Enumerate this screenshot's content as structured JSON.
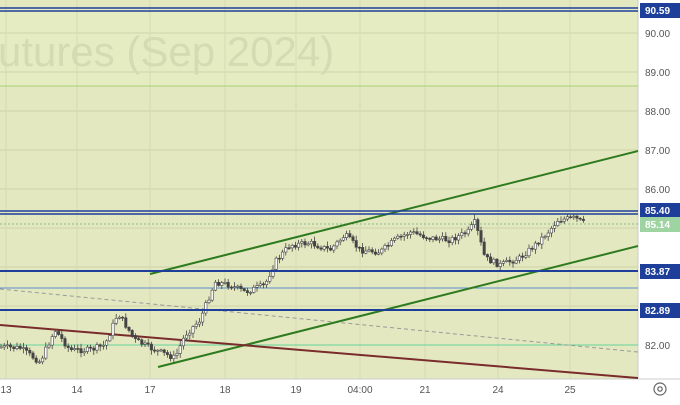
{
  "chart": {
    "watermark": "utures (Sep 2024)",
    "colors": {
      "plot_bg": "#e3e8c0",
      "upper_band_bg": "#e6ecc2",
      "grid": "#cdd3a8",
      "axis_text": "#555555",
      "axis_bg": "#ffffff",
      "level_line": "#1d3f9a",
      "trend_green": "#2e7a1f",
      "trend_brown": "#7a2b2b",
      "candle": "#444444",
      "last_price_bg": "#9ed3a2",
      "level_label_bg": "#1d3f9a",
      "level_label_text": "#ffffff"
    },
    "price_axis": {
      "ticks": [
        "90.00",
        "89.00",
        "88.00",
        "87.00",
        "86.00",
        "82.00"
      ],
      "labels": [
        {
          "price": 90.59,
          "text": "90.59",
          "style": "level"
        },
        {
          "price": 85.4,
          "text": "85.40",
          "style": "level"
        },
        {
          "price": 85.14,
          "text": "85.14",
          "style": "last"
        },
        {
          "price": 83.87,
          "text": "83.87",
          "style": "level"
        },
        {
          "price": 82.89,
          "text": "82.89",
          "style": "level"
        }
      ]
    },
    "time_axis": {
      "ticks": [
        "13",
        "14",
        "17",
        "18",
        "19",
        "04:00",
        "21",
        "24",
        "25"
      ]
    },
    "horizontal_levels": [
      90.59,
      85.4,
      83.87,
      82.89
    ],
    "settings_icon": "gear-icon"
  }
}
